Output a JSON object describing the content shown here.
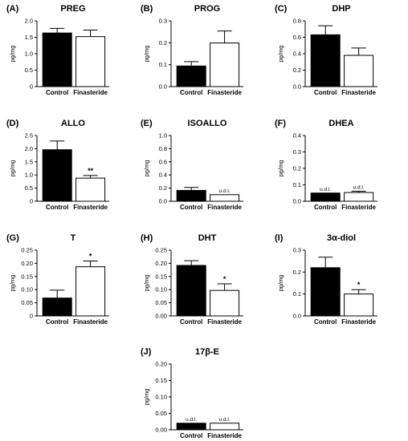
{
  "chart_data": [
    {
      "panel": "(A)",
      "type": "bar",
      "title": "PREG",
      "ylabel": "pg/mg",
      "categories": [
        "Control",
        "Finasteride"
      ],
      "values": [
        1.63,
        1.52
      ],
      "errors": [
        0.14,
        0.2
      ],
      "colors": [
        "#000000",
        "#ffffff"
      ],
      "ylim": [
        0,
        2.0
      ],
      "yticks": [
        "0",
        "0.5",
        "1.0",
        "1.5",
        "2.0"
      ],
      "annotations": [
        "",
        ""
      ]
    },
    {
      "panel": "(B)",
      "type": "bar",
      "title": "PROG",
      "ylabel": "pg/mg",
      "categories": [
        "Control",
        "Finasteride"
      ],
      "values": [
        0.094,
        0.199
      ],
      "errors": [
        0.02,
        0.055
      ],
      "colors": [
        "#000000",
        "#ffffff"
      ],
      "ylim": [
        0,
        0.3
      ],
      "yticks": [
        "0.0",
        "0.1",
        "0.2",
        "0.3"
      ],
      "annotations": [
        "",
        ""
      ]
    },
    {
      "panel": "(C)",
      "type": "bar",
      "title": "DHP",
      "ylabel": "pg/mg",
      "categories": [
        "Control",
        "Finasteride"
      ],
      "values": [
        0.63,
        0.38
      ],
      "errors": [
        0.11,
        0.09
      ],
      "colors": [
        "#000000",
        "#ffffff"
      ],
      "ylim": [
        0,
        0.8
      ],
      "yticks": [
        "0.0",
        "0.2",
        "0.4",
        "0.6",
        "0.8"
      ],
      "annotations": [
        "",
        ""
      ]
    },
    {
      "panel": "(D)",
      "type": "bar",
      "title": "ALLO",
      "ylabel": "pg/mg",
      "categories": [
        "Control",
        "Finasteride"
      ],
      "values": [
        1.96,
        0.88
      ],
      "errors": [
        0.33,
        0.1
      ],
      "colors": [
        "#000000",
        "#ffffff"
      ],
      "ylim": [
        0,
        2.5
      ],
      "yticks": [
        "0",
        "0.5",
        "1.0",
        "1.5",
        "2.0",
        "2.5"
      ],
      "annotations": [
        "",
        "**"
      ]
    },
    {
      "panel": "(E)",
      "type": "bar",
      "title": "ISOALLO",
      "ylabel": "pg/mg",
      "categories": [
        "Control",
        "Finasteride"
      ],
      "values": [
        0.165,
        0.1
      ],
      "errors": [
        0.045,
        0.0
      ],
      "colors": [
        "#000000",
        "#ffffff"
      ],
      "ylim": [
        0,
        1.0
      ],
      "yticks": [
        "0.0",
        "0.2",
        "0.4",
        "0.6",
        "0.8",
        "1.0"
      ],
      "annotations": [
        "",
        "u.d.l."
      ]
    },
    {
      "panel": "(F)",
      "type": "bar",
      "title": "DHEA",
      "ylabel": "pg/mg",
      "categories": [
        "Control",
        "Finasteride"
      ],
      "values": [
        0.05,
        0.053
      ],
      "errors": [
        0.0,
        0.008
      ],
      "colors": [
        "#000000",
        "#ffffff"
      ],
      "ylim": [
        0,
        0.4
      ],
      "yticks": [
        "0.0",
        "0.1",
        "0.2",
        "0.3",
        "0.4"
      ],
      "annotations": [
        "u.d.l.",
        "u.d.l."
      ]
    },
    {
      "panel": "(G)",
      "type": "bar",
      "title": "T",
      "ylabel": "pg/mg",
      "categories": [
        "Control",
        "Finasteride"
      ],
      "values": [
        0.068,
        0.187
      ],
      "errors": [
        0.03,
        0.022
      ],
      "colors": [
        "#000000",
        "#ffffff"
      ],
      "ylim": [
        0,
        0.25
      ],
      "yticks": [
        "0",
        "0.05",
        "0.10",
        "0.15",
        "0.20",
        "0.25"
      ],
      "annotations": [
        "",
        "*"
      ]
    },
    {
      "panel": "(H)",
      "type": "bar",
      "title": "DHT",
      "ylabel": "pg/mg",
      "categories": [
        "Control",
        "Finasteride"
      ],
      "values": [
        0.192,
        0.097
      ],
      "errors": [
        0.018,
        0.025
      ],
      "colors": [
        "#000000",
        "#ffffff"
      ],
      "ylim": [
        0,
        0.25
      ],
      "yticks": [
        "0.00",
        "0.05",
        "0.10",
        "0.15",
        "0.20",
        "0.25"
      ],
      "annotations": [
        "",
        "*"
      ]
    },
    {
      "panel": "(I)",
      "type": "bar",
      "title": "3α-diol",
      "ylabel": "pg/mg",
      "categories": [
        "Control",
        "Finasteride"
      ],
      "values": [
        0.22,
        0.1
      ],
      "errors": [
        0.048,
        0.02
      ],
      "colors": [
        "#000000",
        "#ffffff"
      ],
      "ylim": [
        0,
        0.3
      ],
      "yticks": [
        "0.0",
        "0.1",
        "0.2",
        "0.3"
      ],
      "annotations": [
        "",
        "*"
      ]
    },
    {
      "panel": "(J)",
      "type": "bar",
      "title": "17β-E",
      "ylabel": "pg/mg",
      "categories": [
        "Control",
        "Finasteride"
      ],
      "values": [
        0.02,
        0.02
      ],
      "errors": [
        0.0,
        0.0
      ],
      "colors": [
        "#000000",
        "#ffffff"
      ],
      "ylim": [
        0,
        0.2
      ],
      "yticks": [
        "0.00",
        "0.05",
        "0.10",
        "0.15",
        "0.20"
      ],
      "annotations": [
        "u.d.l.",
        "u.d.l."
      ]
    }
  ]
}
